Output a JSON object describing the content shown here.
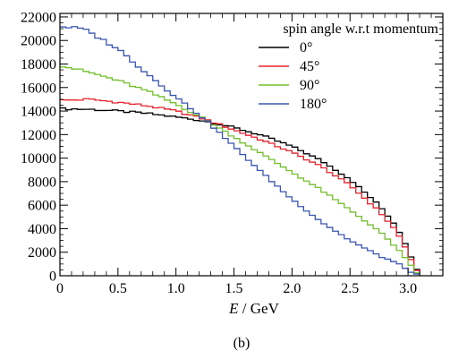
{
  "chart_data": {
    "type": "line",
    "step": true,
    "x_axis": {
      "label_italic": "E",
      "label_rest": " / GeV",
      "range": [
        0,
        3.3
      ],
      "ticks": [
        0,
        0.5,
        1.0,
        1.5,
        2.0,
        2.5,
        3.0
      ],
      "tick_labels": [
        "0",
        "0.5",
        "1.0",
        "1.5",
        "2.0",
        "2.5",
        "3.0"
      ]
    },
    "y_axis": {
      "label": "",
      "range": [
        0,
        22300
      ],
      "ticks": [
        0,
        2000,
        4000,
        6000,
        8000,
        10000,
        12000,
        14000,
        16000,
        18000,
        20000,
        22000
      ],
      "tick_labels": [
        "0",
        "2000",
        "4000",
        "6000",
        "8000",
        "10000",
        "12000",
        "14000",
        "16000",
        "18000",
        "20000",
        "22000"
      ]
    },
    "legend": {
      "title": "spin angle w.r.t momentum",
      "position": "top-right"
    },
    "grid": false,
    "bin_width": 0.05,
    "series": [
      {
        "name": "0°",
        "color": "#000000",
        "anchors": [
          [
            0.0,
            14200
          ],
          [
            0.25,
            14150
          ],
          [
            0.5,
            14000
          ],
          [
            0.75,
            13800
          ],
          [
            1.0,
            13500
          ],
          [
            1.25,
            13150
          ],
          [
            1.5,
            12600
          ],
          [
            1.75,
            11900
          ],
          [
            2.0,
            11000
          ],
          [
            2.25,
            9800
          ],
          [
            2.5,
            8200
          ],
          [
            2.75,
            6000
          ],
          [
            2.9,
            4200
          ],
          [
            3.0,
            2300
          ],
          [
            3.05,
            1000
          ],
          [
            3.1,
            0
          ]
        ]
      },
      {
        "name": "45°",
        "color": "#e8202a",
        "anchors": [
          [
            0.0,
            14900
          ],
          [
            0.25,
            15000
          ],
          [
            0.5,
            14750
          ],
          [
            0.75,
            14450
          ],
          [
            1.0,
            14000
          ],
          [
            1.25,
            13300
          ],
          [
            1.5,
            12400
          ],
          [
            1.75,
            11500
          ],
          [
            2.0,
            10500
          ],
          [
            2.25,
            9300
          ],
          [
            2.5,
            7700
          ],
          [
            2.75,
            5500
          ],
          [
            2.9,
            3800
          ],
          [
            3.0,
            2000
          ],
          [
            3.05,
            800
          ],
          [
            3.1,
            0
          ]
        ]
      },
      {
        "name": "90°",
        "color": "#72c02c",
        "anchors": [
          [
            0.0,
            17900
          ],
          [
            0.25,
            17300
          ],
          [
            0.5,
            16600
          ],
          [
            0.75,
            15700
          ],
          [
            1.0,
            14600
          ],
          [
            1.25,
            13300
          ],
          [
            1.5,
            11800
          ],
          [
            1.75,
            10300
          ],
          [
            2.0,
            8800
          ],
          [
            2.25,
            7300
          ],
          [
            2.5,
            5600
          ],
          [
            2.75,
            3800
          ],
          [
            2.9,
            2400
          ],
          [
            3.0,
            1200
          ],
          [
            3.05,
            500
          ],
          [
            3.1,
            0
          ]
        ]
      },
      {
        "name": "180°",
        "color": "#3a55b4",
        "anchors": [
          [
            0.0,
            21200
          ],
          [
            0.2,
            21000
          ],
          [
            0.5,
            19300
          ],
          [
            0.75,
            17200
          ],
          [
            1.0,
            15200
          ],
          [
            1.25,
            13300
          ],
          [
            1.5,
            11000
          ],
          [
            1.75,
            8700
          ],
          [
            2.0,
            6500
          ],
          [
            2.25,
            4600
          ],
          [
            2.5,
            3000
          ],
          [
            2.75,
            1700
          ],
          [
            2.9,
            1100
          ],
          [
            3.0,
            500
          ],
          [
            3.05,
            200
          ],
          [
            3.1,
            0
          ]
        ]
      }
    ]
  },
  "caption": "(b)"
}
